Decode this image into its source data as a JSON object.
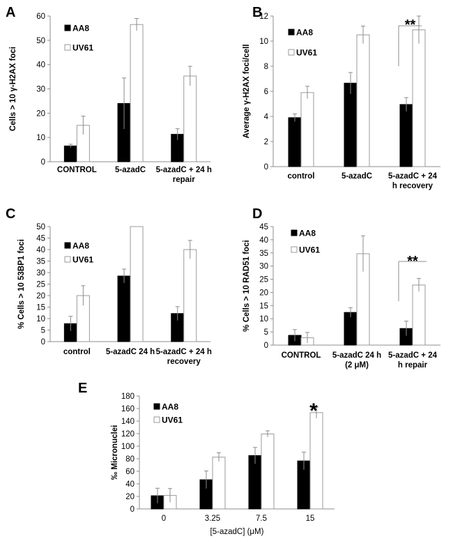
{
  "chart_data": [
    {
      "panel": "A",
      "type": "bar",
      "categories": [
        [
          "CONTROL"
        ],
        [
          "5-azadC"
        ],
        [
          "5-azadC + 24 h",
          "repair"
        ]
      ],
      "series": [
        {
          "name": "AA8",
          "values": [
            6.5,
            24,
            11.3
          ],
          "errors": [
            0.7,
            10.5,
            2.3
          ]
        },
        {
          "name": "UV61",
          "values": [
            15,
            56.5,
            35.3
          ],
          "errors": [
            3.8,
            2.5,
            4
          ]
        }
      ],
      "ylabel": "Cells > 10 γ-H2AX foci",
      "ylim": [
        0,
        60
      ],
      "yticks": [
        "0",
        "10",
        "20",
        "30",
        "40",
        "50",
        "60"
      ],
      "legend": "top-left",
      "significance": null
    },
    {
      "panel": "B",
      "type": "bar",
      "categories": [
        [
          "control"
        ],
        [
          "5-azadC"
        ],
        [
          "5-azadC + 24",
          "h recovery"
        ]
      ],
      "series": [
        {
          "name": "AA8",
          "values": [
            3.9,
            6.65,
            4.95
          ],
          "errors": [
            0.3,
            0.85,
            0.55
          ]
        },
        {
          "name": "UV61",
          "values": [
            5.9,
            10.5,
            10.9
          ],
          "errors": [
            0.5,
            0.7,
            1.1
          ]
        }
      ],
      "ylabel": "Average γ-H2AX foci/cell",
      "ylim": [
        0,
        12
      ],
      "yticks": [
        "0",
        "2",
        "4",
        "6",
        "8",
        "10",
        "12"
      ],
      "legend": "top-left",
      "significance": {
        "label": "**",
        "category": 2
      }
    },
    {
      "panel": "C",
      "type": "bar",
      "categories": [
        [
          "control"
        ],
        [
          "5-azadC 24 h"
        ],
        [
          "5-azadC + 24 h",
          "recovery"
        ]
      ],
      "series": [
        {
          "name": "AA8",
          "values": [
            7.8,
            28.5,
            12.2
          ],
          "errors": [
            3.2,
            3,
            3
          ]
        },
        {
          "name": "UV61",
          "values": [
            20,
            50,
            40
          ],
          "errors": [
            4.3,
            0,
            4
          ]
        }
      ],
      "ylabel": "% Cells > 10 53BP1 foci",
      "ylim": [
        0,
        50
      ],
      "yticks": [
        "0",
        "5",
        "10",
        "15",
        "20",
        "25",
        "30",
        "35",
        "40",
        "45",
        "50"
      ],
      "legend": "top-left",
      "significance": null
    },
    {
      "panel": "D",
      "type": "bar",
      "categories": [
        [
          "CONTROL"
        ],
        [
          "5-azadC 24 h",
          "(2 μM)"
        ],
        [
          "5-azadC + 24",
          "h repair"
        ]
      ],
      "series": [
        {
          "name": "AA8",
          "values": [
            3.7,
            12.4,
            6.3
          ],
          "errors": [
            2.2,
            1.8,
            2.8
          ]
        },
        {
          "name": "UV61",
          "values": [
            2.8,
            34.7,
            22.8
          ],
          "errors": [
            2,
            6.8,
            2.5
          ]
        }
      ],
      "ylabel": "% Cells > 10 RAD51 foci",
      "ylim": [
        0,
        45
      ],
      "yticks": [
        "0",
        "5",
        "10",
        "15",
        "20",
        "25",
        "30",
        "35",
        "40",
        "45"
      ],
      "legend": "top-left",
      "significance": {
        "label": "**",
        "category": 2
      }
    },
    {
      "panel": "E",
      "type": "bar",
      "categories": [
        [
          "0"
        ],
        [
          "3.25"
        ],
        [
          "7.5"
        ],
        [
          "15"
        ]
      ],
      "series": [
        {
          "name": "AA8",
          "values": [
            21,
            46.5,
            85,
            76.5
          ],
          "errors": [
            12,
            14,
            13,
            14
          ]
        },
        {
          "name": "UV61",
          "values": [
            21.5,
            82.5,
            119.5,
            153.5
          ],
          "errors": [
            11,
            7,
            5,
            9
          ]
        }
      ],
      "xlabel": "[5-azadC] (μM)",
      "ylabel": "‰  Micronuclei",
      "ylim": [
        0,
        180
      ],
      "yticks": [
        "0",
        "20",
        "40",
        "60",
        "80",
        "100",
        "120",
        "140",
        "160",
        "180"
      ],
      "legend": "top-left",
      "significance": {
        "label": "*",
        "category": 3
      }
    }
  ],
  "colors": {
    "aa8": "#000000",
    "uv61": "#ffffff",
    "error_bar": "#8c8c8c",
    "axis": "#8c8c8c"
  }
}
